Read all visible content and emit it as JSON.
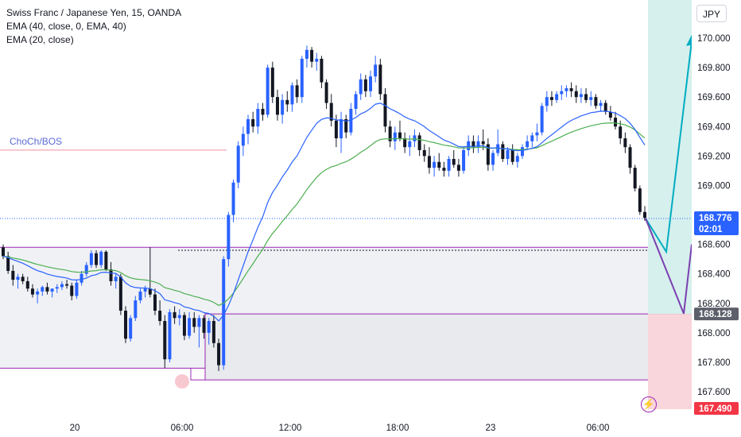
{
  "header": {
    "symbol_line": "Swiss Franc / Japanese Yen, 15, OANDA",
    "ema1_line": "EMA (40, close, 0, EMA, 40)",
    "ema2_line": "EMA (20, close)",
    "currency_button": "JPY"
  },
  "annotations": {
    "choch_label": "ChoCh/BOS",
    "bolt_icon": "lightning-icon"
  },
  "colors": {
    "up": "#2962ff",
    "down": "#131722",
    "ema40": "#4caf50",
    "ema20": "#2962ff",
    "zone_border": "#9c27b0",
    "long_target": "#26a69a",
    "long_stop": "#ef5350",
    "choch_line": "#f5b5c0",
    "current_price_tag": "#2962ff",
    "grey_tag": "#5d606b",
    "red_tag": "#f23645"
  },
  "price_tags": {
    "current_price": "168.776",
    "countdown": "02:01",
    "zone_price": "168.128",
    "stop_price": "167.490"
  },
  "chart_data": {
    "type": "candlestick",
    "title": "Swiss Franc / Japanese Yen, 15, OANDA",
    "y_axis": {
      "ticks": [
        "170.000",
        "169.800",
        "169.600",
        "169.400",
        "169.200",
        "169.000",
        "168.800",
        "168.600",
        "168.400",
        "168.200",
        "168.000",
        "167.800",
        "167.600"
      ],
      "ylim": [
        167.5,
        170.25
      ]
    },
    "x_axis": {
      "ticks": [
        "20",
        "06:00",
        "12:00",
        "18:00",
        "23",
        "06:00"
      ]
    },
    "series": [
      {
        "name": "CHFJPY",
        "ohlc": [
          [
            168.58,
            168.6,
            168.5,
            168.52
          ],
          [
            168.52,
            168.55,
            168.4,
            168.42
          ],
          [
            168.42,
            168.46,
            168.32,
            168.36
          ],
          [
            168.36,
            168.4,
            168.3,
            168.38
          ],
          [
            168.38,
            168.4,
            168.33,
            168.35
          ],
          [
            168.35,
            168.38,
            168.28,
            168.3
          ],
          [
            168.3,
            168.33,
            168.24,
            168.26
          ],
          [
            168.26,
            168.3,
            168.2,
            168.28
          ],
          [
            168.28,
            168.32,
            168.25,
            168.31
          ],
          [
            168.31,
            168.34,
            168.26,
            168.28
          ],
          [
            168.28,
            168.3,
            168.24,
            168.3
          ],
          [
            168.3,
            168.33,
            168.27,
            168.31
          ],
          [
            168.31,
            168.35,
            168.29,
            168.33
          ],
          [
            168.33,
            168.36,
            168.3,
            168.32
          ],
          [
            168.32,
            168.34,
            168.22,
            168.25
          ],
          [
            168.25,
            168.36,
            168.23,
            168.34
          ],
          [
            168.34,
            168.42,
            168.32,
            168.4
          ],
          [
            168.4,
            168.48,
            168.38,
            168.46
          ],
          [
            168.46,
            168.56,
            168.44,
            168.54
          ],
          [
            168.54,
            168.56,
            168.44,
            168.46
          ],
          [
            168.46,
            168.56,
            168.44,
            168.55
          ],
          [
            168.55,
            168.56,
            168.42,
            168.43
          ],
          [
            168.43,
            168.48,
            168.32,
            168.35
          ],
          [
            168.35,
            168.4,
            168.3,
            168.38
          ],
          [
            168.38,
            168.4,
            168.12,
            168.15
          ],
          [
            168.15,
            168.18,
            167.93,
            167.96
          ],
          [
            167.96,
            168.12,
            167.94,
            168.1
          ],
          [
            168.1,
            168.25,
            168.08,
            168.22
          ],
          [
            168.22,
            168.3,
            168.2,
            168.28
          ],
          [
            168.28,
            168.32,
            168.24,
            168.3
          ],
          [
            168.3,
            168.58,
            168.24,
            168.26
          ],
          [
            168.26,
            168.3,
            168.12,
            168.15
          ],
          [
            168.15,
            168.22,
            168.05,
            168.08
          ],
          [
            168.08,
            168.12,
            167.76,
            167.82
          ],
          [
            167.82,
            168.16,
            167.8,
            168.14
          ],
          [
            168.14,
            168.18,
            168.06,
            168.1
          ],
          [
            168.1,
            168.16,
            168.05,
            168.12
          ],
          [
            168.12,
            168.14,
            167.95,
            167.98
          ],
          [
            167.98,
            168.14,
            167.96,
            168.1
          ],
          [
            168.1,
            168.14,
            168.0,
            168.04
          ],
          [
            168.04,
            168.12,
            167.9,
            168.1
          ],
          [
            168.1,
            168.12,
            167.96,
            168.0
          ],
          [
            168.0,
            168.1,
            167.92,
            168.08
          ],
          [
            168.08,
            168.12,
            167.9,
            167.93
          ],
          [
            167.93,
            167.96,
            167.74,
            167.78
          ],
          [
            167.78,
            168.52,
            167.75,
            168.5
          ],
          [
            168.5,
            168.82,
            168.45,
            168.8
          ],
          [
            168.8,
            169.04,
            168.75,
            169.02
          ],
          [
            169.02,
            169.3,
            168.98,
            169.27
          ],
          [
            169.27,
            169.4,
            169.2,
            169.35
          ],
          [
            169.35,
            169.48,
            169.28,
            169.45
          ],
          [
            169.45,
            169.5,
            169.36,
            169.4
          ],
          [
            169.4,
            169.56,
            169.35,
            169.52
          ],
          [
            169.52,
            169.56,
            169.44,
            169.48
          ],
          [
            169.48,
            169.82,
            169.46,
            169.8
          ],
          [
            169.8,
            169.84,
            169.56,
            169.6
          ],
          [
            169.6,
            169.65,
            169.44,
            169.48
          ],
          [
            169.48,
            169.62,
            169.42,
            169.58
          ],
          [
            169.58,
            169.64,
            169.5,
            169.55
          ],
          [
            169.55,
            169.7,
            169.5,
            169.68
          ],
          [
            169.68,
            169.72,
            169.56,
            169.6
          ],
          [
            169.6,
            169.88,
            169.56,
            169.86
          ],
          [
            169.86,
            169.95,
            169.8,
            169.92
          ],
          [
            169.92,
            169.94,
            169.8,
            169.84
          ],
          [
            169.84,
            169.9,
            169.78,
            169.86
          ],
          [
            169.86,
            169.88,
            169.66,
            169.7
          ],
          [
            169.7,
            169.72,
            169.52,
            169.56
          ],
          [
            169.56,
            169.62,
            169.4,
            169.44
          ],
          [
            169.44,
            169.48,
            169.26,
            169.32
          ],
          [
            169.32,
            169.5,
            169.22,
            169.45
          ],
          [
            169.45,
            169.48,
            169.32,
            169.36
          ],
          [
            169.36,
            169.56,
            169.34,
            169.52
          ],
          [
            169.52,
            169.64,
            169.48,
            169.62
          ],
          [
            169.62,
            169.76,
            169.58,
            169.72
          ],
          [
            169.72,
            169.75,
            169.6,
            169.64
          ],
          [
            169.64,
            169.78,
            169.6,
            169.74
          ],
          [
            169.74,
            169.88,
            169.7,
            169.82
          ],
          [
            169.82,
            169.86,
            169.58,
            169.62
          ],
          [
            169.62,
            169.66,
            169.36,
            169.4
          ],
          [
            169.4,
            169.44,
            169.26,
            169.3
          ],
          [
            169.3,
            169.4,
            169.24,
            169.36
          ],
          [
            169.36,
            169.44,
            169.3,
            169.32
          ],
          [
            169.32,
            169.36,
            169.22,
            169.26
          ],
          [
            169.26,
            169.34,
            169.2,
            169.3
          ],
          [
            169.3,
            169.38,
            169.26,
            169.34
          ],
          [
            169.34,
            169.36,
            169.2,
            169.24
          ],
          [
            169.24,
            169.28,
            169.16,
            169.2
          ],
          [
            169.2,
            169.26,
            169.08,
            169.12
          ],
          [
            169.12,
            169.2,
            169.06,
            169.16
          ],
          [
            169.16,
            169.22,
            169.1,
            169.12
          ],
          [
            169.12,
            169.16,
            169.06,
            169.1
          ],
          [
            169.1,
            169.2,
            169.06,
            169.18
          ],
          [
            169.18,
            169.24,
            169.12,
            169.14
          ],
          [
            169.14,
            169.18,
            169.06,
            169.1
          ],
          [
            169.1,
            169.26,
            169.08,
            169.24
          ],
          [
            169.24,
            169.34,
            169.2,
            169.3
          ],
          [
            169.3,
            169.34,
            169.22,
            169.26
          ],
          [
            169.26,
            169.34,
            169.22,
            169.3
          ],
          [
            169.3,
            169.38,
            169.24,
            169.28
          ],
          [
            169.28,
            169.32,
            169.1,
            169.14
          ],
          [
            169.14,
            169.24,
            169.1,
            169.22
          ],
          [
            169.22,
            169.38,
            169.2,
            169.28
          ],
          [
            169.28,
            169.3,
            169.16,
            169.18
          ],
          [
            169.18,
            169.26,
            169.14,
            169.24
          ],
          [
            169.24,
            169.28,
            169.14,
            169.16
          ],
          [
            169.16,
            169.22,
            169.12,
            169.2
          ],
          [
            169.2,
            169.28,
            169.18,
            169.26
          ],
          [
            169.26,
            169.34,
            169.24,
            169.3
          ],
          [
            169.3,
            169.36,
            169.26,
            169.34
          ],
          [
            169.34,
            169.42,
            169.3,
            169.36
          ],
          [
            169.36,
            169.56,
            169.34,
            169.54
          ],
          [
            169.54,
            169.64,
            169.5,
            169.6
          ],
          [
            169.6,
            169.64,
            169.54,
            169.58
          ],
          [
            169.58,
            169.64,
            169.56,
            169.62
          ],
          [
            169.62,
            169.68,
            169.58,
            169.64
          ],
          [
            169.64,
            169.68,
            169.6,
            169.66
          ],
          [
            169.66,
            169.7,
            169.6,
            169.64
          ],
          [
            169.64,
            169.68,
            169.56,
            169.6
          ],
          [
            169.6,
            169.66,
            169.56,
            169.62
          ],
          [
            169.62,
            169.66,
            169.56,
            169.58
          ],
          [
            169.58,
            169.64,
            169.54,
            169.6
          ],
          [
            169.6,
            169.62,
            169.52,
            169.54
          ],
          [
            169.54,
            169.58,
            169.5,
            169.56
          ],
          [
            169.56,
            169.58,
            169.48,
            169.5
          ],
          [
            169.5,
            169.54,
            169.44,
            169.46
          ],
          [
            169.46,
            169.5,
            169.38,
            169.4
          ],
          [
            169.4,
            169.44,
            169.28,
            169.32
          ],
          [
            169.32,
            169.36,
            169.22,
            169.26
          ],
          [
            169.26,
            169.28,
            169.08,
            169.12
          ],
          [
            169.12,
            169.14,
            168.96,
            168.98
          ],
          [
            168.98,
            169.0,
            168.8,
            168.82
          ],
          [
            168.82,
            168.86,
            168.76,
            168.78
          ]
        ]
      },
      {
        "name": "EMA (20, close)",
        "color": "#2962ff"
      },
      {
        "name": "EMA (40, close, 0, EMA, 40)",
        "color": "#4caf50"
      }
    ],
    "levels": {
      "choch_bos": 169.24,
      "zone_top": 168.58,
      "zone_bottom": 167.76,
      "lower_zone_top": 168.128,
      "lower_zone_bottom": 167.68,
      "dotted_level": 168.56,
      "current": 168.776
    },
    "projections": {
      "teal_path": [
        168.776,
        168.55,
        169.98
      ],
      "purple_path": [
        168.776,
        168.13,
        168.6
      ]
    },
    "legend": "top-left",
    "grid": false
  }
}
